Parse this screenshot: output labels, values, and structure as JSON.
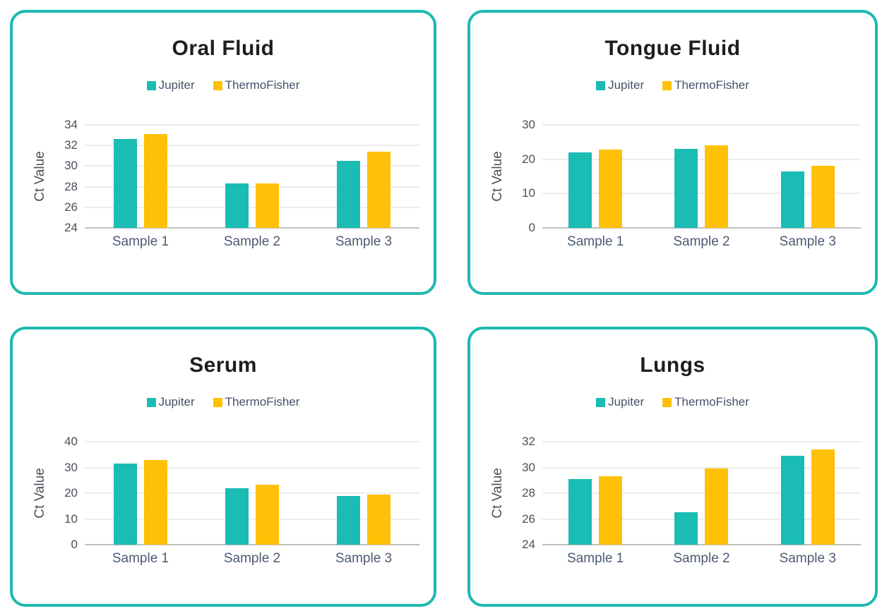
{
  "page": {
    "background": "#ffffff",
    "card_border_color": "#1cb9b1",
    "card_background": "#ffffff",
    "gridline_color": "#d9d9d9",
    "baseline_color": "#bfbfbf"
  },
  "chart_data": [
    {
      "type": "bar",
      "title": "Oral Fluid",
      "ylabel": "Ct Value",
      "xlabel": "",
      "categories": [
        "Sample 1",
        "Sample 2",
        "Sample 3"
      ],
      "series": [
        {
          "name": "Jupiter",
          "color": "#1abcb4",
          "values": [
            32.6,
            28.3,
            30.5
          ]
        },
        {
          "name": "ThermoFisher",
          "color": "#ffc107",
          "values": [
            33.1,
            28.3,
            31.4
          ]
        }
      ],
      "ylim": [
        24,
        34
      ],
      "ytick_step": 2,
      "grid": true,
      "legend_position": "top"
    },
    {
      "type": "bar",
      "title": "Tongue Fluid",
      "ylabel": "Ct Value",
      "xlabel": "",
      "categories": [
        "Sample 1",
        "Sample 2",
        "Sample 3"
      ],
      "series": [
        {
          "name": "Jupiter",
          "color": "#1abcb4",
          "values": [
            22.0,
            23.1,
            16.4
          ]
        },
        {
          "name": "ThermoFisher",
          "color": "#ffc107",
          "values": [
            22.8,
            24.0,
            18.0
          ]
        }
      ],
      "ylim": [
        0,
        30
      ],
      "ytick_step": 10,
      "grid": true,
      "legend_position": "top"
    },
    {
      "type": "bar",
      "title": "Serum",
      "ylabel": "Ct Value",
      "xlabel": "",
      "categories": [
        "Sample 1",
        "Sample 2",
        "Sample 3"
      ],
      "series": [
        {
          "name": "Jupiter",
          "color": "#1abcb4",
          "values": [
            31.4,
            21.8,
            18.9
          ]
        },
        {
          "name": "ThermoFisher",
          "color": "#ffc107",
          "values": [
            33.0,
            23.2,
            19.4
          ]
        }
      ],
      "ylim": [
        0,
        40
      ],
      "ytick_step": 10,
      "grid": true,
      "legend_position": "top"
    },
    {
      "type": "bar",
      "title": "Lungs",
      "ylabel": "Ct Value",
      "xlabel": "",
      "categories": [
        "Sample 1",
        "Sample 2",
        "Sample 3"
      ],
      "series": [
        {
          "name": "Jupiter",
          "color": "#1abcb4",
          "values": [
            29.1,
            26.5,
            30.9
          ]
        },
        {
          "name": "ThermoFisher",
          "color": "#ffc107",
          "values": [
            29.3,
            29.9,
            31.4
          ]
        }
      ],
      "ylim": [
        24,
        32
      ],
      "ytick_step": 2,
      "grid": true,
      "legend_position": "top"
    }
  ]
}
